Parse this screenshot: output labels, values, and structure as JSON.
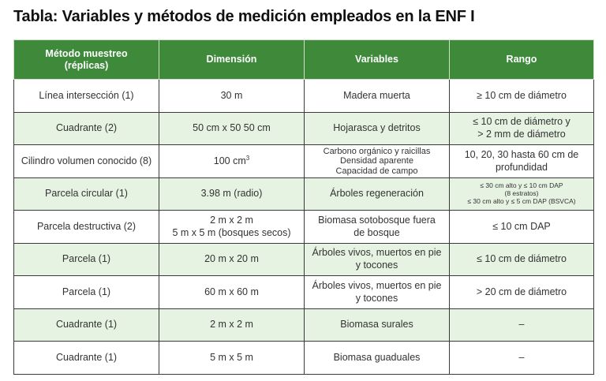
{
  "title": "Tabla: Variables y métodos de medición empleados en la ENF I",
  "headers": {
    "metodo_l1": "Método muestreo",
    "metodo_l2": "(réplicas)",
    "dimension": "Dimensión",
    "variables": "Variables",
    "rango": "Rango"
  },
  "rows": [
    {
      "metodo": "Línea intersección (1)",
      "dimension": "30 m",
      "variables": "Madera muerta",
      "rango": "≥ 10 cm de diámetro"
    },
    {
      "metodo": "Cuadrante (2)",
      "dimension": "50 cm x 50 50 cm",
      "variables": "Hojarasca y detritos",
      "rango_l1": "≤ 10 cm de diámetro y",
      "rango_l2": "> 2 mm de diámetro"
    },
    {
      "metodo": "Cilindro volumen conocido (8)",
      "dimension": "100 cm",
      "dimension_sup": "3",
      "variables_l1": "Carbono orgánico y raicillas",
      "variables_l2": "Densidad aparente",
      "variables_l3": "Capacidad de campo",
      "rango_l1": "10, 20, 30 hasta 60 cm de",
      "rango_l2": "profundidad"
    },
    {
      "metodo": "Parcela circular (1)",
      "dimension": "3.98 m (radio)",
      "variables": "Árboles regeneración",
      "rango_l1": "≤ 30 cm alto y ≤ 10 cm DAP",
      "rango_l2": "(8 estratos)",
      "rango_l3": "≤ 30 cm alto y ≤ 5 cm DAP (BSVCA)"
    },
    {
      "metodo": "Parcela destructiva (2)",
      "dimension_l1": "2 m x 2 m",
      "dimension_l2": "5 m x 5 m (bosques secos)",
      "variables_l1": "Biomasa sotobosque fuera",
      "variables_l2": "de bosque",
      "rango": "≤ 10 cm DAP"
    },
    {
      "metodo": "Parcela (1)",
      "dimension": "20 m x 20 m",
      "variables_l1": "Árboles vivos, muertos en pie",
      "variables_l2": "y tocones",
      "rango": "≤ 10 cm de diámetro"
    },
    {
      "metodo": "Parcela (1)",
      "dimension": "60 m x 60 m",
      "variables_l1": "Árboles vivos, muertos en pie",
      "variables_l2": "y tocones",
      "rango": "> 20 cm de diámetro"
    },
    {
      "metodo": "Cuadrante (1)",
      "dimension": "2 m x 2 m",
      "variables": "Biomasa surales",
      "rango": "–"
    },
    {
      "metodo": "Cuadrante (1)",
      "dimension": "5 m x 5 m",
      "variables": "Biomasa guaduales",
      "rango": "–"
    }
  ]
}
